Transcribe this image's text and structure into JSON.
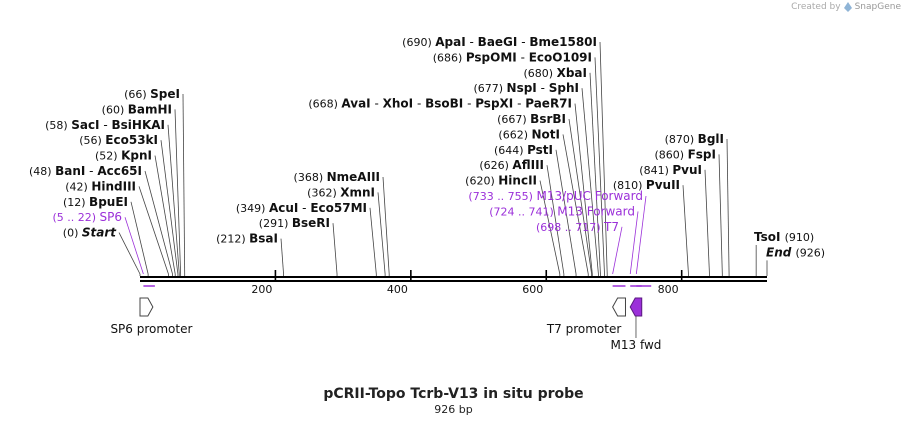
{
  "credit": {
    "prefix": "Created by",
    "brand": "SnapGene"
  },
  "title": "pCRII-Topo Tcrb-V13 in situ probe",
  "subtitle": "926 bp",
  "colors": {
    "primer": "#9b30d9",
    "feature": "#9b30d9",
    "line": "#000000",
    "text": "#111111"
  },
  "map": {
    "length": 926
  },
  "ticks": [
    {
      "pos": 200,
      "label": "200"
    },
    {
      "pos": 400,
      "label": "400"
    },
    {
      "pos": 600,
      "label": "600"
    },
    {
      "pos": 800,
      "label": "800"
    }
  ],
  "left_labels": [
    {
      "pos": 66,
      "items": [
        {
          "num": "(66)",
          "name": "SpeI"
        }
      ]
    },
    {
      "pos": 60,
      "items": [
        {
          "num": "(60)",
          "name": "BamHI"
        }
      ]
    },
    {
      "pos": 58,
      "items": [
        {
          "num": "(58)",
          "name": "SacI"
        },
        {
          "name": "BsiHKAI"
        }
      ]
    },
    {
      "pos": 56,
      "items": [
        {
          "num": "(56)",
          "name": "Eco53kI"
        }
      ]
    },
    {
      "pos": 52,
      "items": [
        {
          "num": "(52)",
          "name": "KpnI"
        }
      ]
    },
    {
      "pos": 48,
      "items": [
        {
          "num": "(48)",
          "name": "BanI"
        },
        {
          "name": "Acc65I"
        }
      ]
    },
    {
      "pos": 42,
      "items": [
        {
          "num": "(42)",
          "name": "HindIII"
        }
      ]
    },
    {
      "pos": 12,
      "items": [
        {
          "num": "(12)",
          "name": "BpuEI"
        }
      ]
    },
    {
      "pos": 5,
      "primer": true,
      "items": [
        {
          "num": "(5 .. 22)",
          "name": "SP6"
        }
      ]
    },
    {
      "pos": 0,
      "italic": true,
      "items": [
        {
          "num": "(0)",
          "name": "Start"
        }
      ]
    }
  ],
  "mid_labels": [
    {
      "pos": 368,
      "items": [
        {
          "num": "(368)",
          "name": "NmeAIII"
        }
      ]
    },
    {
      "pos": 362,
      "items": [
        {
          "num": "(362)",
          "name": "XmnI"
        }
      ]
    },
    {
      "pos": 349,
      "items": [
        {
          "num": "(349)",
          "name": "AcuI"
        },
        {
          "name": "Eco57MI"
        }
      ]
    },
    {
      "pos": 291,
      "items": [
        {
          "num": "(291)",
          "name": "BseRI"
        }
      ]
    },
    {
      "pos": 212,
      "items": [
        {
          "num": "(212)",
          "name": "BsaI"
        }
      ]
    }
  ],
  "right_labels": [
    {
      "pos": 690,
      "items": [
        {
          "num": "(690)",
          "name": "ApaI"
        },
        {
          "name": "BaeGI"
        },
        {
          "name": "Bme1580I"
        }
      ]
    },
    {
      "pos": 686,
      "items": [
        {
          "num": "(686)",
          "name": "PspOMI"
        },
        {
          "name": "EcoO109I"
        }
      ]
    },
    {
      "pos": 680,
      "items": [
        {
          "num": "(680)",
          "name": "XbaI"
        }
      ]
    },
    {
      "pos": 677,
      "items": [
        {
          "num": "(677)",
          "name": "NspI"
        },
        {
          "name": "SphI"
        }
      ]
    },
    {
      "pos": 668,
      "items": [
        {
          "num": "(668)",
          "name": "AvaI"
        },
        {
          "name": "XhoI"
        },
        {
          "name": "BsoBI"
        },
        {
          "name": "PspXI"
        },
        {
          "name": "PaeR7I"
        }
      ]
    },
    {
      "pos": 667,
      "items": [
        {
          "num": "(667)",
          "name": "BsrBI"
        }
      ]
    },
    {
      "pos": 662,
      "items": [
        {
          "num": "(662)",
          "name": "NotI"
        }
      ]
    },
    {
      "pos": 644,
      "items": [
        {
          "num": "(644)",
          "name": "PstI"
        }
      ]
    },
    {
      "pos": 626,
      "items": [
        {
          "num": "(626)",
          "name": "AflIII"
        }
      ]
    },
    {
      "pos": 620,
      "items": [
        {
          "num": "(620)",
          "name": "HincII"
        }
      ]
    },
    {
      "pos": 733,
      "primer": true,
      "items": [
        {
          "num": "(733 .. 755)",
          "name": "M13/pUC Forward"
        }
      ]
    },
    {
      "pos": 724,
      "primer": true,
      "items": [
        {
          "num": "(724 .. 741)",
          "name": "M13 Forward"
        }
      ]
    },
    {
      "pos": 698,
      "primer": true,
      "items": [
        {
          "num": "(698 .. 717)",
          "name": "T7"
        }
      ]
    }
  ],
  "far_right_labels": [
    {
      "pos": 870,
      "items": [
        {
          "num": "(870)",
          "name": "BglI"
        }
      ]
    },
    {
      "pos": 860,
      "items": [
        {
          "num": "(860)",
          "name": "FspI"
        }
      ]
    },
    {
      "pos": 841,
      "items": [
        {
          "num": "(841)",
          "name": "PvuI"
        }
      ]
    },
    {
      "pos": 810,
      "items": [
        {
          "num": "(810)",
          "name": "PvuII"
        }
      ]
    }
  ],
  "end_labels": [
    {
      "pos": 910,
      "items": [
        {
          "name": "TsoI"
        },
        {
          "num": "(910)"
        }
      ]
    },
    {
      "pos": 926,
      "italic": true,
      "items": [
        {
          "name": "End"
        },
        {
          "num": "(926)"
        }
      ]
    }
  ],
  "features": [
    {
      "name": "SP6 promoter",
      "start": 0,
      "end": 19,
      "direction": "forward",
      "filled": false
    },
    {
      "name": "T7 promoter",
      "start": 698,
      "end": 717,
      "direction": "reverse",
      "filled": false
    },
    {
      "name": "M13 fwd",
      "start": 724,
      "end": 741,
      "direction": "reverse",
      "filled": true
    }
  ]
}
